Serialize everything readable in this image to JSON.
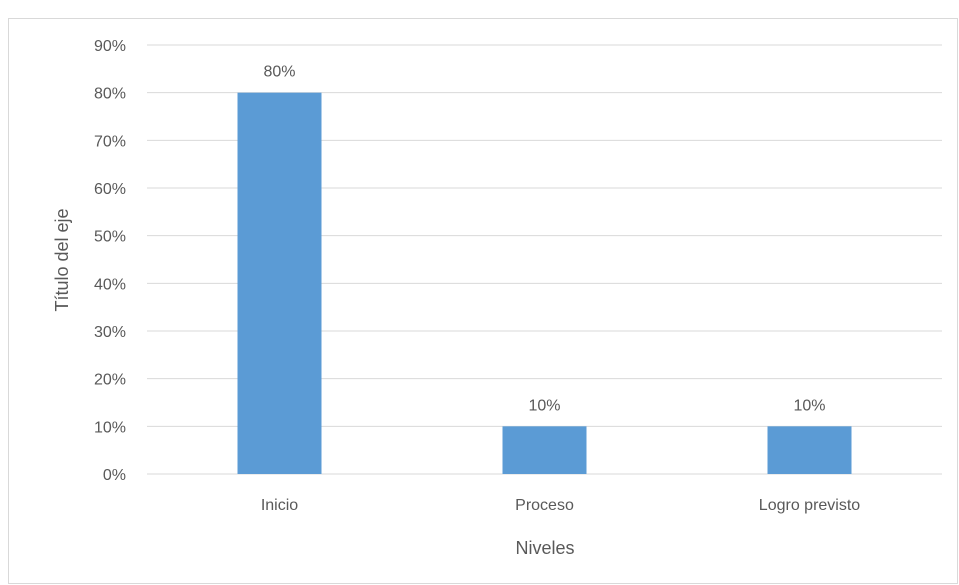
{
  "chart_data": {
    "type": "bar",
    "title": "",
    "xlabel": "Niveles",
    "ylabel": "Título del eje",
    "categories": [
      "Inicio",
      "Proceso",
      "Logro previsto"
    ],
    "values": [
      80,
      10,
      10
    ],
    "data_labels": [
      "80%",
      "10%",
      "10%"
    ],
    "ylim": [
      0,
      90
    ],
    "yticks": [
      0,
      10,
      20,
      30,
      40,
      50,
      60,
      70,
      80,
      90
    ],
    "ytick_labels": [
      "0%",
      "10%",
      "20%",
      "30%",
      "40%",
      "50%",
      "60%",
      "70%",
      "80%",
      "90%"
    ],
    "grid": true,
    "legend": "none",
    "bar_color": "#5b9bd5",
    "grid_color": "#d9d9d9",
    "text_color": "#595959"
  }
}
